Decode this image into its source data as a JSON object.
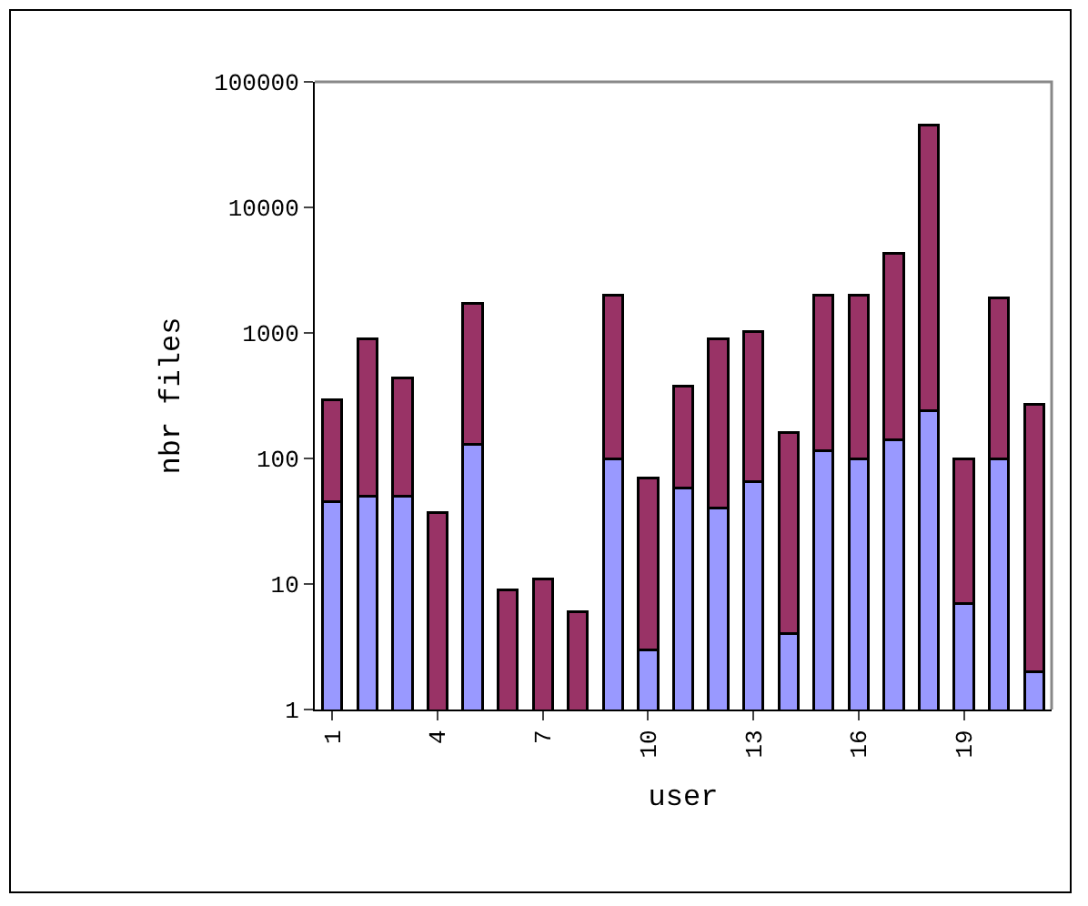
{
  "chart_data": {
    "type": "bar",
    "stacked": true,
    "log": true,
    "xlabel": "user",
    "ylabel": "nbr files",
    "categories": [
      "1",
      null,
      null,
      "4",
      null,
      null,
      "7",
      null,
      null,
      "10",
      null,
      null,
      "13",
      null,
      null,
      "16",
      null,
      null,
      "19",
      null,
      null
    ],
    "series": [
      {
        "color": "#9999ff",
        "values": [
          45,
          50,
          50,
          null,
          130,
          null,
          null,
          null,
          100,
          3,
          58,
          40,
          65,
          4,
          115,
          100,
          140,
          240,
          7,
          100,
          2
        ]
      },
      {
        "color": "#993366",
        "values": [
          250,
          850,
          390,
          37,
          1600,
          9,
          11,
          6,
          1900,
          67,
          320,
          860,
          960,
          156,
          1900,
          1900,
          4200,
          45000,
          93,
          1800,
          270
        ]
      }
    ],
    "ylim": [
      1,
      100000
    ],
    "yticks": [
      1,
      10,
      100,
      1000,
      10000,
      100000
    ],
    "grid": false
  }
}
